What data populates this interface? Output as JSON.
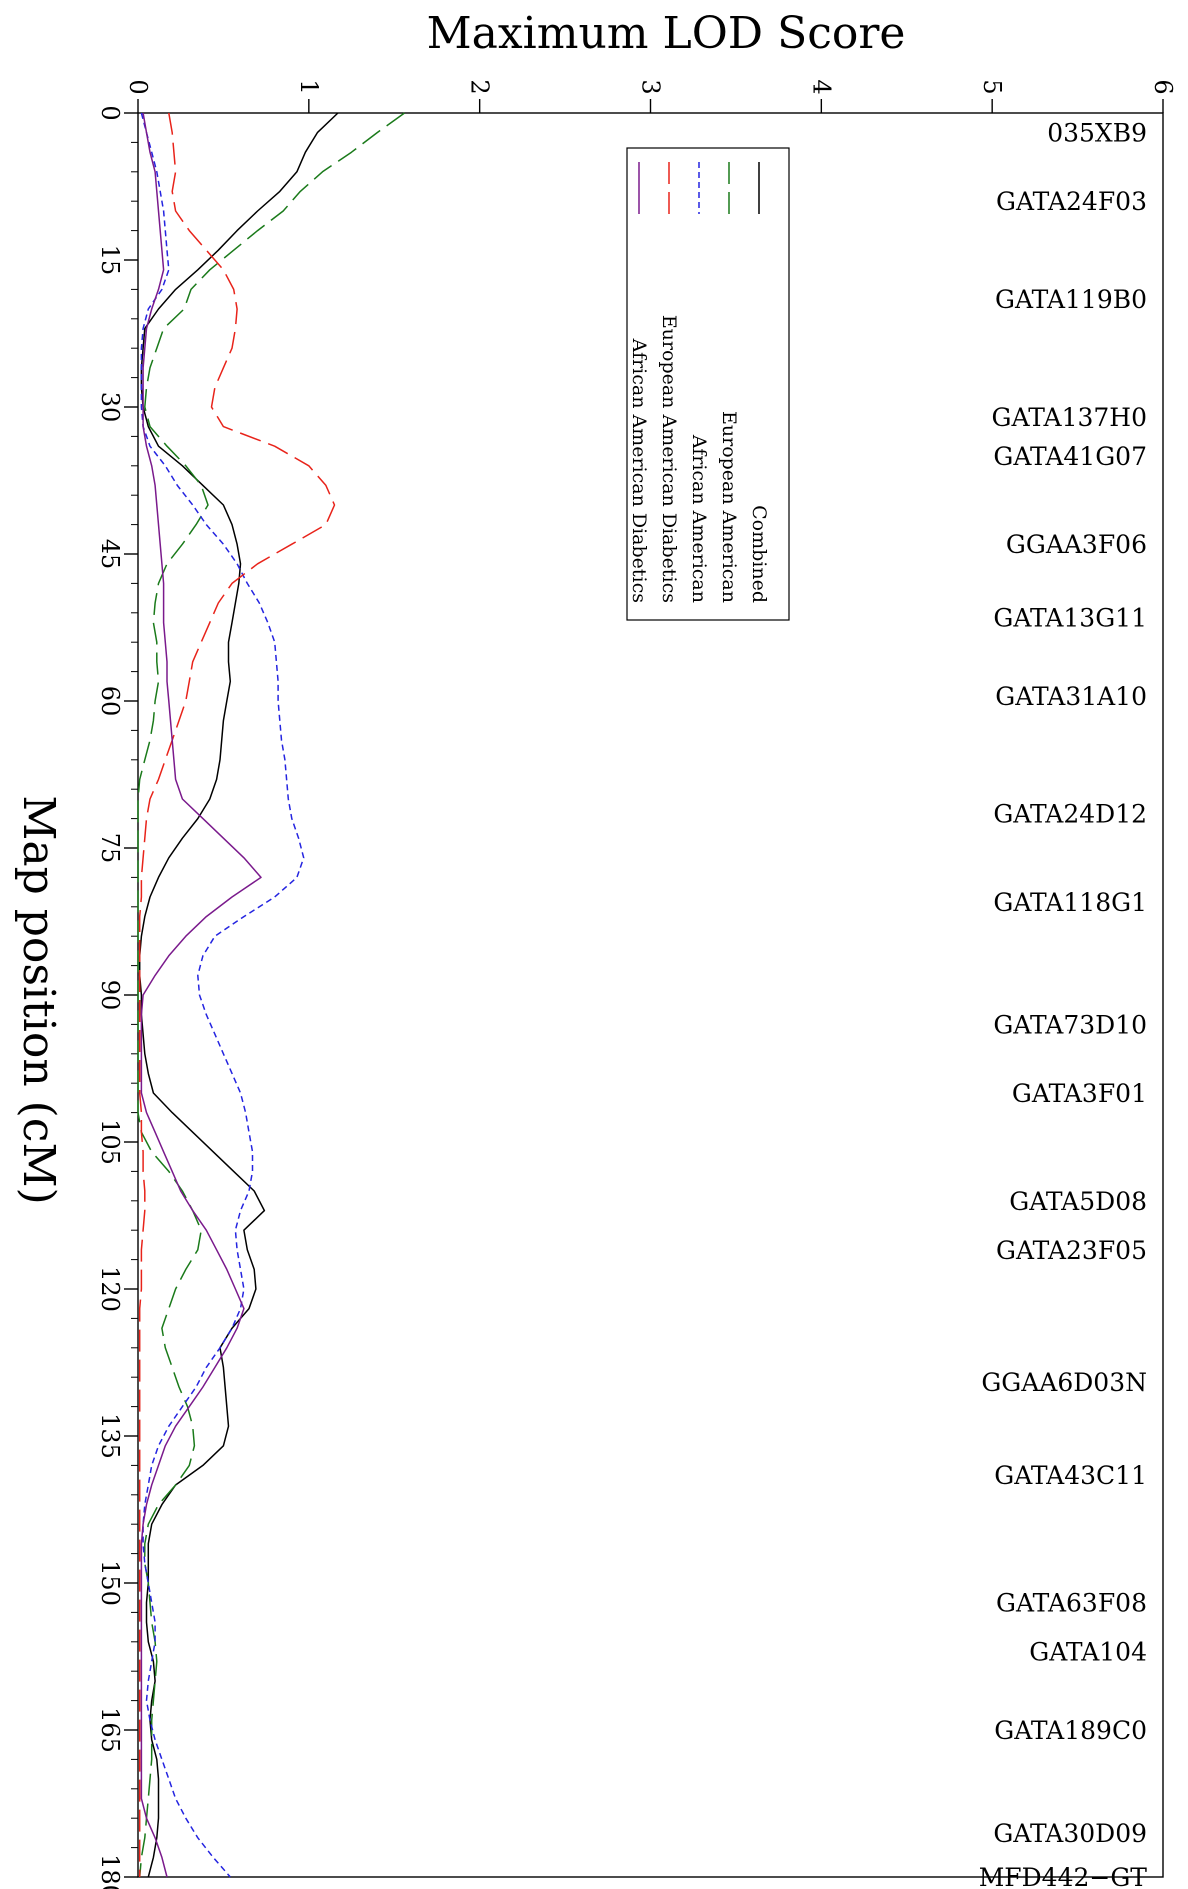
{
  "chart_data": {
    "type": "line",
    "title": "Maximum LOD Score",
    "xlabel": "Map position (cM)",
    "xlim": [
      0,
      180
    ],
    "ylim": [
      0,
      6
    ],
    "x_ticks": [
      0,
      15,
      30,
      45,
      60,
      75,
      90,
      105,
      120,
      135,
      150,
      165,
      180
    ],
    "y_ticks": [
      0,
      1,
      2,
      3,
      4,
      5,
      6
    ],
    "x_tick_labels": [
      "0",
      "15",
      "30",
      "45",
      "60",
      "75",
      "90",
      "105",
      "120",
      "135",
      "150",
      "165",
      "180"
    ],
    "y_tick_labels": [
      "0",
      "1",
      "2",
      "3",
      "4",
      "5",
      "6"
    ],
    "legend_position": "upper-middle",
    "markers": [
      {
        "label": "035XB9",
        "pos": 2
      },
      {
        "label": "GATA24F03",
        "pos": 9
      },
      {
        "label": "GATA119B0",
        "pos": 19
      },
      {
        "label": "GATA137H0",
        "pos": 31
      },
      {
        "label": "GATA41G07",
        "pos": 35
      },
      {
        "label": "GGAA3F06",
        "pos": 44
      },
      {
        "label": "GATA13G11",
        "pos": 51.5
      },
      {
        "label": "GATA31A10",
        "pos": 59.5
      },
      {
        "label": "GATA24D12",
        "pos": 71.5
      },
      {
        "label": "GATA118G1",
        "pos": 80.5
      },
      {
        "label": "GATA73D10",
        "pos": 93
      },
      {
        "label": "GATA3F01",
        "pos": 100
      },
      {
        "label": "GATA5D08",
        "pos": 111
      },
      {
        "label": "GATA23F05",
        "pos": 116
      },
      {
        "label": "GGAA6D03N",
        "pos": 129.5
      },
      {
        "label": "GATA43C11",
        "pos": 139
      },
      {
        "label": "GATA63F08",
        "pos": 152
      },
      {
        "label": "GATA104",
        "pos": 157
      },
      {
        "label": "GATA189C0",
        "pos": 165
      },
      {
        "label": "GATA30D09",
        "pos": 175.5
      },
      {
        "label": "MFD442−GT",
        "pos": 180
      }
    ],
    "series": [
      {
        "name": "Combined",
        "color": "#000000",
        "dash": "solid",
        "x": [
          0,
          2,
          4,
          6,
          8,
          10,
          12,
          14,
          16,
          18,
          20,
          22,
          24,
          26,
          28,
          30,
          32,
          34,
          36,
          38,
          40,
          42,
          44,
          46,
          48,
          50,
          52,
          54,
          56,
          58,
          60,
          62,
          64,
          66,
          68,
          70,
          72,
          74,
          76,
          78,
          80,
          82,
          84,
          86,
          88,
          90,
          92,
          94,
          96,
          98,
          100,
          102,
          104,
          106,
          108,
          110,
          112,
          114,
          116,
          118,
          120,
          122,
          124,
          126,
          128,
          130,
          132,
          134,
          136,
          138,
          140,
          142,
          144,
          146,
          148,
          150,
          152,
          154,
          156,
          158,
          160,
          162,
          164,
          166,
          168,
          170,
          172,
          174,
          176,
          178,
          180
        ],
        "y": [
          1.17,
          1.05,
          0.98,
          0.93,
          0.83,
          0.7,
          0.58,
          0.47,
          0.35,
          0.22,
          0.12,
          0.04,
          0.03,
          0.02,
          0.02,
          0.03,
          0.06,
          0.12,
          0.26,
          0.38,
          0.5,
          0.55,
          0.58,
          0.6,
          0.59,
          0.57,
          0.55,
          0.53,
          0.53,
          0.54,
          0.52,
          0.5,
          0.49,
          0.48,
          0.46,
          0.42,
          0.35,
          0.26,
          0.18,
          0.12,
          0.07,
          0.04,
          0.02,
          0.01,
          0.01,
          0.02,
          0.02,
          0.03,
          0.04,
          0.06,
          0.09,
          0.2,
          0.32,
          0.44,
          0.56,
          0.68,
          0.74,
          0.62,
          0.64,
          0.68,
          0.69,
          0.65,
          0.55,
          0.48,
          0.5,
          0.51,
          0.52,
          0.53,
          0.5,
          0.38,
          0.22,
          0.14,
          0.08,
          0.06,
          0.06,
          0.06,
          0.05,
          0.05,
          0.06,
          0.09,
          0.1,
          0.08,
          0.07,
          0.08,
          0.11,
          0.12,
          0.12,
          0.12,
          0.11,
          0.09,
          0.06
        ]
      },
      {
        "name": "European American",
        "color": "#1a7a1a",
        "dash": "longdash",
        "x": [
          0,
          2,
          4,
          6,
          8,
          10,
          12,
          14,
          16,
          18,
          20,
          22,
          24,
          26,
          28,
          30,
          32,
          34,
          36,
          38,
          40,
          42,
          44,
          46,
          48,
          50,
          52,
          54,
          56,
          58,
          60,
          62,
          64,
          66,
          68,
          70,
          72,
          74,
          76,
          78,
          80,
          82,
          84,
          86,
          88,
          90,
          92,
          94,
          96,
          98,
          100,
          102,
          104,
          106,
          108,
          110,
          112,
          114,
          116,
          118,
          120,
          122,
          124,
          126,
          128,
          130,
          132,
          134,
          136,
          138,
          140,
          142,
          144,
          146,
          148,
          150,
          152,
          154,
          156,
          158,
          160,
          162,
          164,
          166,
          168,
          170,
          172,
          174,
          176,
          178,
          180
        ],
        "y": [
          1.56,
          1.4,
          1.25,
          1.08,
          0.95,
          0.85,
          0.7,
          0.56,
          0.42,
          0.31,
          0.27,
          0.15,
          0.11,
          0.07,
          0.05,
          0.04,
          0.07,
          0.17,
          0.28,
          0.37,
          0.41,
          0.34,
          0.26,
          0.17,
          0.12,
          0.1,
          0.09,
          0.11,
          0.11,
          0.12,
          0.1,
          0.09,
          0.07,
          0.04,
          0.01,
          0.0,
          0.0,
          0.0,
          0.0,
          0.0,
          0.0,
          0.0,
          0.0,
          0.0,
          0.0,
          0.0,
          0.0,
          0.0,
          0.0,
          0.0,
          0.0,
          0.0,
          0.02,
          0.08,
          0.18,
          0.26,
          0.32,
          0.37,
          0.35,
          0.28,
          0.22,
          0.18,
          0.14,
          0.16,
          0.2,
          0.24,
          0.29,
          0.32,
          0.33,
          0.3,
          0.22,
          0.12,
          0.06,
          0.04,
          0.04,
          0.06,
          0.07,
          0.08,
          0.1,
          0.11,
          0.1,
          0.09,
          0.08,
          0.08,
          0.08,
          0.07,
          0.06,
          0.05,
          0.04,
          0.02,
          0.01
        ]
      },
      {
        "name": "African American",
        "color": "#2424e0",
        "dash": "dash",
        "x": [
          0,
          2,
          4,
          6,
          8,
          10,
          12,
          14,
          16,
          18,
          20,
          22,
          24,
          26,
          28,
          30,
          32,
          34,
          36,
          38,
          40,
          42,
          44,
          46,
          48,
          50,
          52,
          54,
          56,
          58,
          60,
          62,
          64,
          66,
          68,
          70,
          72,
          74,
          76,
          78,
          80,
          82,
          84,
          86,
          88,
          90,
          92,
          94,
          96,
          98,
          100,
          102,
          104,
          106,
          108,
          110,
          112,
          114,
          116,
          118,
          120,
          122,
          124,
          126,
          128,
          130,
          132,
          134,
          136,
          138,
          140,
          142,
          144,
          146,
          148,
          150,
          152,
          154,
          156,
          158,
          160,
          162,
          164,
          166,
          168,
          170,
          172,
          174,
          176,
          178,
          180
        ],
        "y": [
          0.02,
          0.05,
          0.08,
          0.11,
          0.13,
          0.15,
          0.16,
          0.17,
          0.18,
          0.14,
          0.06,
          0.03,
          0.02,
          0.02,
          0.02,
          0.02,
          0.03,
          0.07,
          0.16,
          0.23,
          0.32,
          0.4,
          0.5,
          0.58,
          0.64,
          0.71,
          0.76,
          0.8,
          0.81,
          0.82,
          0.82,
          0.83,
          0.84,
          0.86,
          0.87,
          0.88,
          0.9,
          0.94,
          0.97,
          0.93,
          0.8,
          0.62,
          0.45,
          0.38,
          0.35,
          0.36,
          0.4,
          0.45,
          0.5,
          0.55,
          0.6,
          0.63,
          0.65,
          0.67,
          0.67,
          0.65,
          0.6,
          0.57,
          0.58,
          0.6,
          0.62,
          0.6,
          0.55,
          0.48,
          0.4,
          0.34,
          0.26,
          0.18,
          0.12,
          0.08,
          0.06,
          0.04,
          0.03,
          0.03,
          0.04,
          0.06,
          0.08,
          0.1,
          0.1,
          0.08,
          0.06,
          0.05,
          0.07,
          0.1,
          0.14,
          0.18,
          0.22,
          0.28,
          0.35,
          0.44,
          0.54
        ]
      },
      {
        "name": "European American Diabetics",
        "color": "#e8231a",
        "dash": "longdash",
        "x": [
          0,
          2,
          4,
          6,
          8,
          10,
          12,
          14,
          16,
          18,
          20,
          22,
          24,
          26,
          28,
          30,
          32,
          34,
          36,
          38,
          40,
          42,
          44,
          46,
          48,
          50,
          52,
          54,
          56,
          58,
          60,
          62,
          64,
          66,
          68,
          70,
          72,
          74,
          76,
          78,
          80,
          82,
          84,
          86,
          88,
          90,
          92,
          94,
          96,
          98,
          100,
          102,
          104,
          106,
          108,
          110,
          112,
          114,
          116,
          118,
          120,
          122,
          124,
          126,
          128,
          130,
          132,
          134,
          136,
          138,
          140,
          142,
          144,
          146,
          148,
          150,
          152,
          154,
          156,
          158,
          160,
          162,
          164,
          166,
          168,
          170,
          172,
          174,
          176,
          178,
          180
        ],
        "y": [
          0.18,
          0.2,
          0.21,
          0.22,
          0.2,
          0.22,
          0.3,
          0.4,
          0.5,
          0.56,
          0.58,
          0.57,
          0.55,
          0.5,
          0.45,
          0.43,
          0.5,
          0.8,
          1.0,
          1.1,
          1.15,
          1.1,
          0.9,
          0.7,
          0.55,
          0.47,
          0.42,
          0.37,
          0.32,
          0.3,
          0.28,
          0.24,
          0.2,
          0.16,
          0.12,
          0.07,
          0.05,
          0.04,
          0.03,
          0.02,
          0.02,
          0.01,
          0.01,
          0.01,
          0.01,
          0.01,
          0.01,
          0.01,
          0.01,
          0.01,
          0.01,
          0.02,
          0.02,
          0.03,
          0.03,
          0.04,
          0.04,
          0.03,
          0.02,
          0.02,
          0.02,
          0.01,
          0.01,
          0.01,
          0.01,
          0.01,
          0.01,
          0.01,
          0.01,
          0.01,
          0.01,
          0.01,
          0.01,
          0.01,
          0.01,
          0.01,
          0.01,
          0.01,
          0.01,
          0.01,
          0.01,
          0.01,
          0.01,
          0.01,
          0.01,
          0.01,
          0.01,
          0.01,
          0.01,
          0.01,
          0.01
        ]
      },
      {
        "name": "African American Diabetics",
        "color": "#7a1a8c",
        "dash": "solid",
        "x": [
          0,
          2,
          4,
          6,
          8,
          10,
          12,
          14,
          16,
          18,
          20,
          22,
          24,
          26,
          28,
          30,
          32,
          34,
          36,
          38,
          40,
          42,
          44,
          46,
          48,
          50,
          52,
          54,
          56,
          58,
          60,
          62,
          64,
          66,
          68,
          70,
          72,
          74,
          76,
          78,
          80,
          82,
          84,
          86,
          88,
          90,
          92,
          94,
          96,
          98,
          100,
          102,
          104,
          106,
          108,
          110,
          112,
          114,
          116,
          118,
          120,
          122,
          124,
          126,
          128,
          130,
          132,
          134,
          136,
          138,
          140,
          142,
          144,
          146,
          148,
          150,
          152,
          154,
          156,
          158,
          160,
          162,
          164,
          166,
          168,
          170,
          172,
          174,
          176,
          178,
          180
        ],
        "y": [
          0.03,
          0.05,
          0.07,
          0.1,
          0.11,
          0.12,
          0.13,
          0.14,
          0.15,
          0.12,
          0.08,
          0.05,
          0.04,
          0.03,
          0.03,
          0.03,
          0.03,
          0.05,
          0.08,
          0.1,
          0.11,
          0.12,
          0.13,
          0.14,
          0.15,
          0.15,
          0.15,
          0.16,
          0.17,
          0.17,
          0.18,
          0.19,
          0.2,
          0.21,
          0.22,
          0.26,
          0.38,
          0.5,
          0.62,
          0.72,
          0.55,
          0.4,
          0.28,
          0.18,
          0.1,
          0.03,
          0.02,
          0.02,
          0.02,
          0.02,
          0.02,
          0.05,
          0.1,
          0.15,
          0.2,
          0.25,
          0.32,
          0.4,
          0.46,
          0.52,
          0.57,
          0.62,
          0.58,
          0.52,
          0.45,
          0.38,
          0.3,
          0.22,
          0.16,
          0.12,
          0.08,
          0.05,
          0.03,
          0.02,
          0.02,
          0.02,
          0.02,
          0.02,
          0.02,
          0.02,
          0.02,
          0.02,
          0.02,
          0.02,
          0.02,
          0.02,
          0.02,
          0.05,
          0.1,
          0.14,
          0.17
        ]
      }
    ]
  }
}
